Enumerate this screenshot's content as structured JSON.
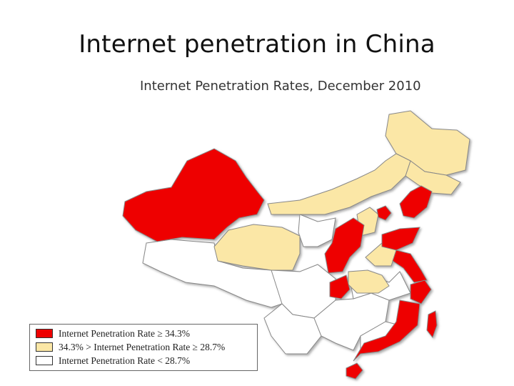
{
  "slide": {
    "title": "Internet penetration in China"
  },
  "map": {
    "title": "Internet Penetration Rates, December 2010",
    "colors": {
      "high": "#ee0000",
      "mid": "#fbe7a6",
      "low": "#ffffff",
      "border": "#888888"
    }
  },
  "legend": {
    "items": [
      {
        "label": "Internet Penetration Rate ≥ 34.3%",
        "color": "#ee0000"
      },
      {
        "label": "34.3% > Internet Penetration Rate ≥ 28.7%",
        "color": "#fbe7a6"
      },
      {
        "label": "Internet Penetration Rate < 28.7%",
        "color": "#ffffff"
      }
    ]
  }
}
